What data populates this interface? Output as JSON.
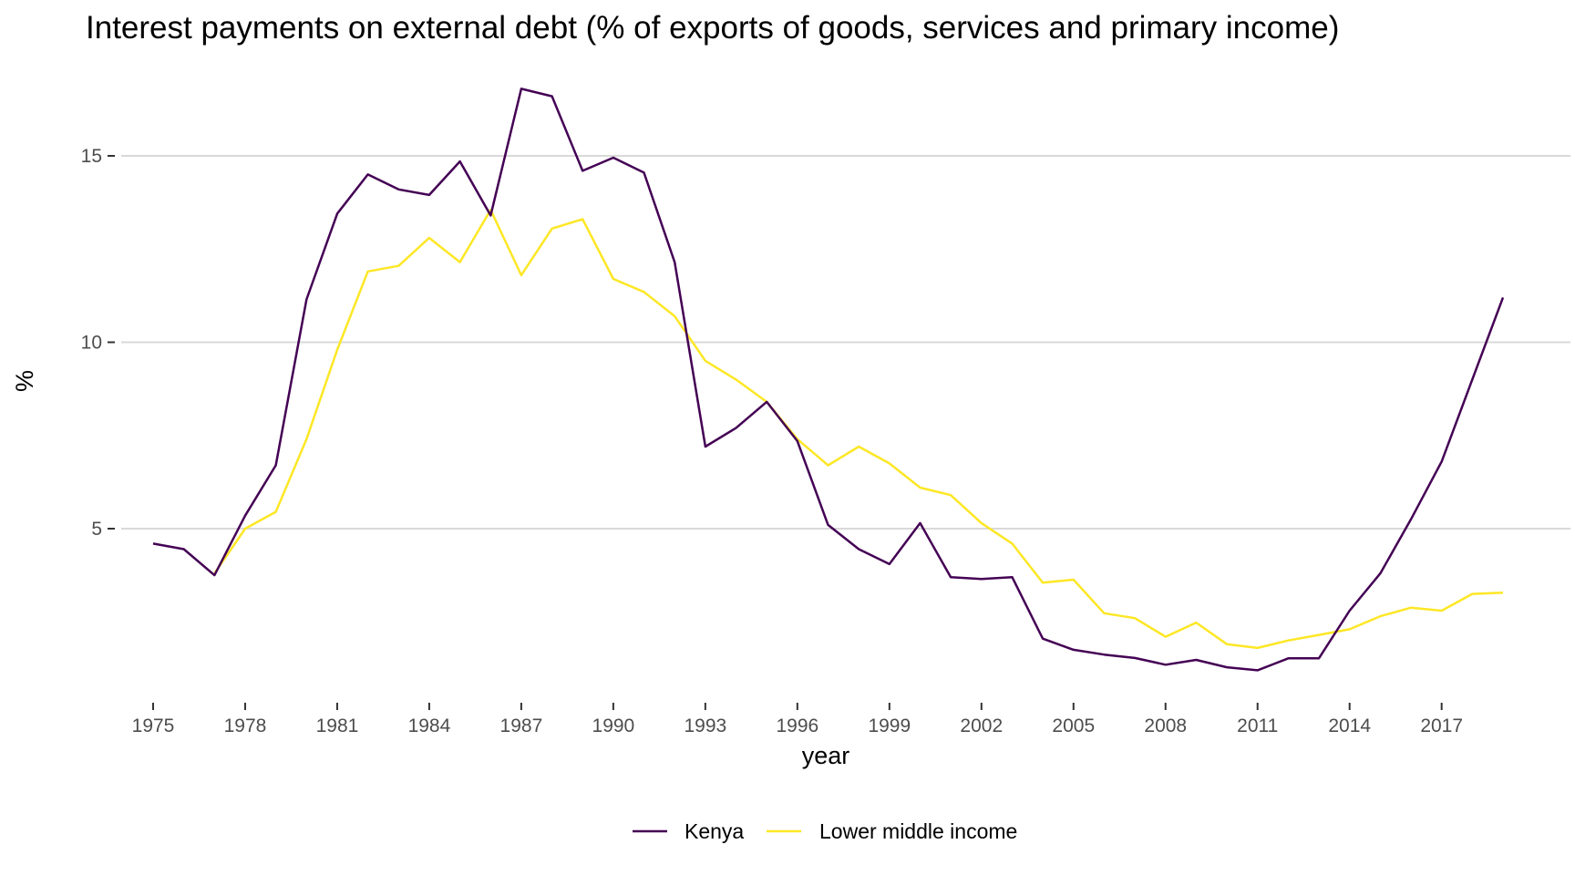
{
  "chart_data": {
    "type": "line",
    "title": "Interest payments on external debt (% of exports of goods, services and primary income)",
    "xlabel": "year",
    "ylabel": "%",
    "xlim": [
      1975,
      2019
    ],
    "ylim": [
      0.5,
      17.5
    ],
    "x_ticks": [
      1975,
      1978,
      1981,
      1984,
      1987,
      1990,
      1993,
      1996,
      1999,
      2002,
      2005,
      2008,
      2011,
      2014,
      2017
    ],
    "y_ticks": [
      5,
      10,
      15
    ],
    "grid": true,
    "legend_position": "bottom",
    "series": [
      {
        "name": "Kenya",
        "color": "#440154",
        "x": [
          1975,
          1976,
          1977,
          1978,
          1979,
          1980,
          1981,
          1982,
          1983,
          1984,
          1985,
          1986,
          1987,
          1988,
          1989,
          1990,
          1991,
          1992,
          1993,
          1994,
          1995,
          1996,
          1997,
          1998,
          1999,
          2000,
          2001,
          2002,
          2003,
          2004,
          2005,
          2006,
          2007,
          2008,
          2009,
          2010,
          2011,
          2012,
          2013,
          2014,
          2015,
          2016,
          2017,
          2018,
          2019
        ],
        "values": [
          4.6,
          4.45,
          3.75,
          5.35,
          6.7,
          11.15,
          13.45,
          14.5,
          14.1,
          13.95,
          14.85,
          13.4,
          16.8,
          16.6,
          14.6,
          14.95,
          14.55,
          12.15,
          7.2,
          7.7,
          8.4,
          7.35,
          5.1,
          4.45,
          4.05,
          5.15,
          3.7,
          3.65,
          3.7,
          2.05,
          1.75,
          1.62,
          1.53,
          1.35,
          1.48,
          1.28,
          1.2,
          1.52,
          1.52,
          2.8,
          3.8,
          5.25,
          6.8,
          9.0,
          11.2
        ]
      },
      {
        "name": "Lower middle income",
        "color": "#fde725",
        "x": [
          1977,
          1978,
          1979,
          1980,
          1981,
          1982,
          1983,
          1984,
          1985,
          1986,
          1987,
          1988,
          1989,
          1990,
          1991,
          1992,
          1993,
          1994,
          1995,
          1996,
          1997,
          1998,
          1999,
          2000,
          2001,
          2002,
          2003,
          2004,
          2005,
          2006,
          2007,
          2008,
          2009,
          2010,
          2011,
          2012,
          2013,
          2014,
          2015,
          2016,
          2017,
          2018,
          2019
        ],
        "values": [
          3.8,
          5.0,
          5.45,
          7.4,
          9.8,
          11.9,
          12.05,
          12.8,
          12.15,
          13.55,
          11.8,
          13.05,
          13.3,
          11.7,
          11.35,
          10.7,
          9.5,
          9.0,
          8.4,
          7.4,
          6.7,
          7.2,
          6.75,
          6.1,
          5.9,
          5.15,
          4.6,
          3.55,
          3.63,
          2.73,
          2.6,
          2.1,
          2.48,
          1.9,
          1.8,
          2.0,
          2.15,
          2.3,
          2.65,
          2.88,
          2.8,
          3.25,
          3.28
        ]
      }
    ]
  }
}
